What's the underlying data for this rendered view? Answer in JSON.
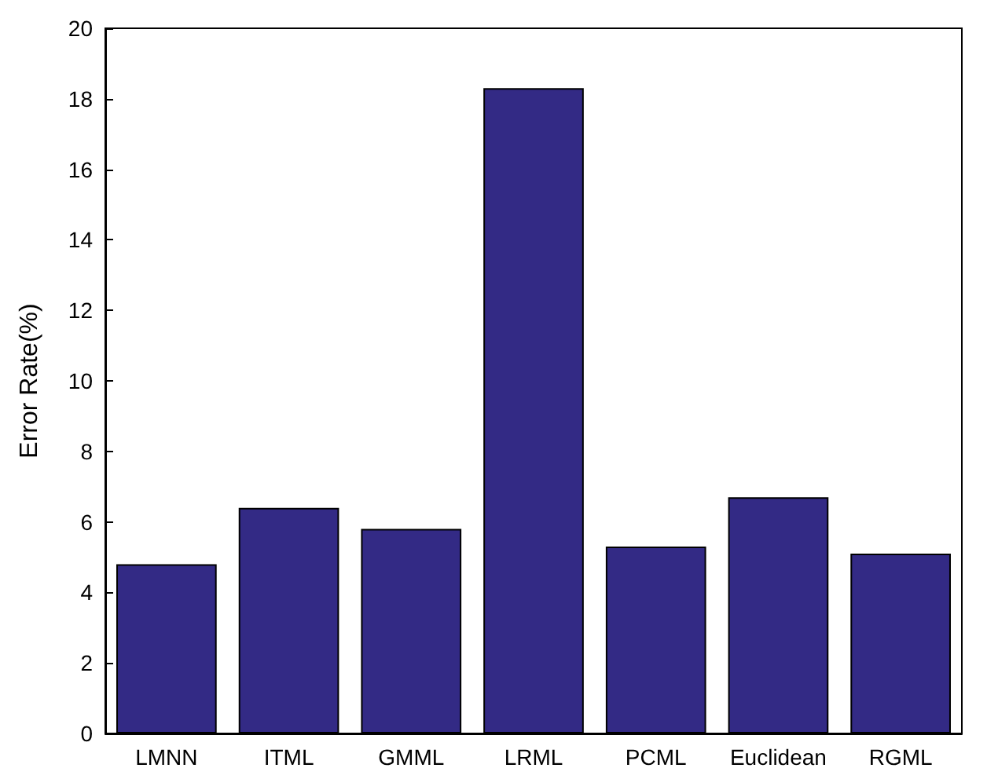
{
  "chart_data": {
    "type": "bar",
    "ylabel": "Error Rate(%)",
    "categories": [
      "LMNN",
      "ITML",
      "GMML",
      "LRML",
      "PCML",
      "Euclidean",
      "RGML"
    ],
    "values": [
      4.8,
      6.4,
      5.8,
      18.3,
      5.3,
      6.7,
      5.1
    ],
    "color": "#332a85",
    "ylim": [
      0,
      20
    ],
    "yticks": [
      0,
      2,
      4,
      6,
      8,
      10,
      12,
      14,
      16,
      18,
      20
    ],
    "grid": false
  }
}
